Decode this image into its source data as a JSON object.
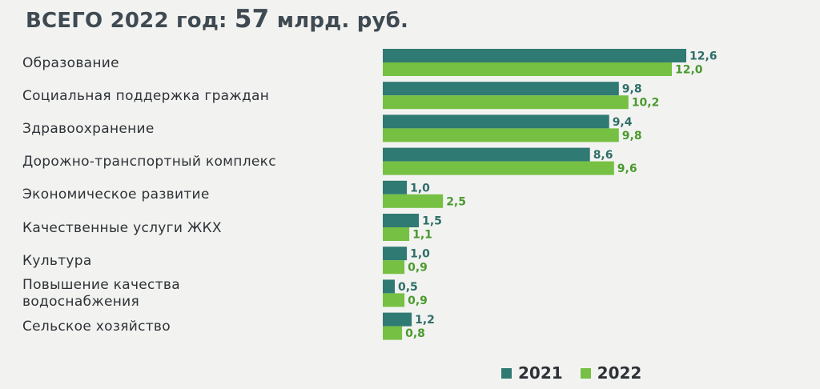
{
  "title_prefix": "ВСЕГО 2022 год: ",
  "title_amount": "57",
  "title_unit": " млрд. руб.",
  "colors": {
    "y2021": "#2f7a72",
    "y2022": "#76c043",
    "label2021": "#2f6e68",
    "label2022": "#4a9a2e"
  },
  "chart_data": {
    "type": "bar",
    "orientation": "horizontal",
    "title": "ВСЕГО 2022 год: 57 млрд. руб.",
    "categories": [
      [
        "Образование"
      ],
      [
        "Социальная поддержка граждан"
      ],
      [
        "Здравоохранение"
      ],
      [
        "Дорожно-транспортный комплекс"
      ],
      [
        "Экономическое развитие"
      ],
      [
        "Качественные услуги ЖКХ"
      ],
      [
        "Культура"
      ],
      [
        "Повышение качества",
        "водоснабжения"
      ],
      [
        "Сельское хозяйство"
      ]
    ],
    "series": [
      {
        "name": "2021",
        "values": [
          12.6,
          9.8,
          9.4,
          8.6,
          1.0,
          1.5,
          1.0,
          0.5,
          1.2
        ],
        "labels": [
          "12,6",
          "9,8",
          "9,4",
          "8,6",
          "1,0",
          "1,5",
          "1,0",
          "0,5",
          "1,2"
        ]
      },
      {
        "name": "2022",
        "values": [
          12.0,
          10.2,
          9.8,
          9.6,
          2.5,
          1.1,
          0.9,
          0.9,
          0.8
        ],
        "labels": [
          "12,0",
          "10,2",
          "9,8",
          "9,6",
          "2,5",
          "1,1",
          "0,9",
          "0,9",
          "0,8"
        ]
      }
    ],
    "legend_position": "bottom-right",
    "grid": false,
    "xlim": [
      0,
      12.6
    ]
  }
}
